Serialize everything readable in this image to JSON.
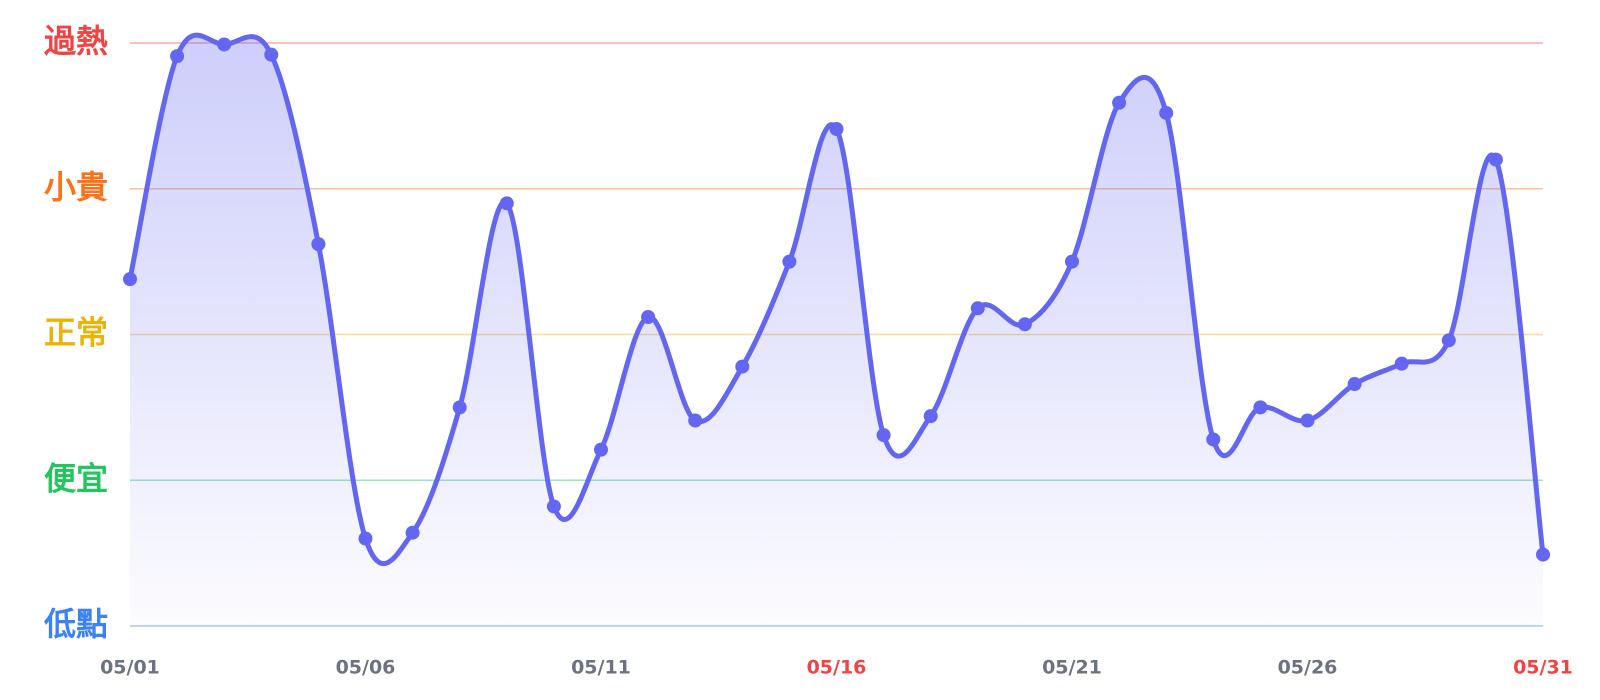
{
  "chart_data": {
    "type": "line",
    "categories": [
      "05/01",
      null,
      null,
      null,
      null,
      "05/06",
      null,
      null,
      null,
      null,
      "05/11",
      null,
      null,
      null,
      null,
      "05/16",
      null,
      null,
      null,
      null,
      "05/21",
      null,
      null,
      null,
      null,
      "05/26",
      null,
      null,
      null,
      null,
      "05/31"
    ],
    "xtick_colors": [
      "#6b7280",
      null,
      null,
      null,
      null,
      "#6b7280",
      null,
      null,
      null,
      null,
      "#6b7280",
      null,
      null,
      null,
      null,
      "#ef4444",
      null,
      null,
      null,
      null,
      "#6b7280",
      null,
      null,
      null,
      null,
      "#6b7280",
      null,
      null,
      null,
      null,
      "#ef4444"
    ],
    "series": [
      {
        "color": "#6366f1",
        "values": [
          2.38,
          3.91,
          3.99,
          3.92,
          2.62,
          0.6,
          0.64,
          1.5,
          2.9,
          0.82,
          1.21,
          2.12,
          1.41,
          1.78,
          2.5,
          3.41,
          1.31,
          1.44,
          2.18,
          2.07,
          2.5,
          3.59,
          3.52,
          1.28,
          1.5,
          1.41,
          1.66,
          1.8,
          1.96,
          3.2,
          0.49
        ]
      }
    ],
    "ylim": [
      0,
      4
    ],
    "yticks": [
      {
        "value": 0,
        "label": "低點"
      },
      {
        "value": 1,
        "label": "便宜"
      },
      {
        "value": 2,
        "label": "正常"
      },
      {
        "value": 3,
        "label": "小貴"
      },
      {
        "value": 4,
        "label": "過熱"
      }
    ],
    "ytick_colors": [
      "#3b82f6",
      "#22c55e",
      "#eab308",
      "#f97316",
      "#ef4444"
    ],
    "grid": true
  }
}
